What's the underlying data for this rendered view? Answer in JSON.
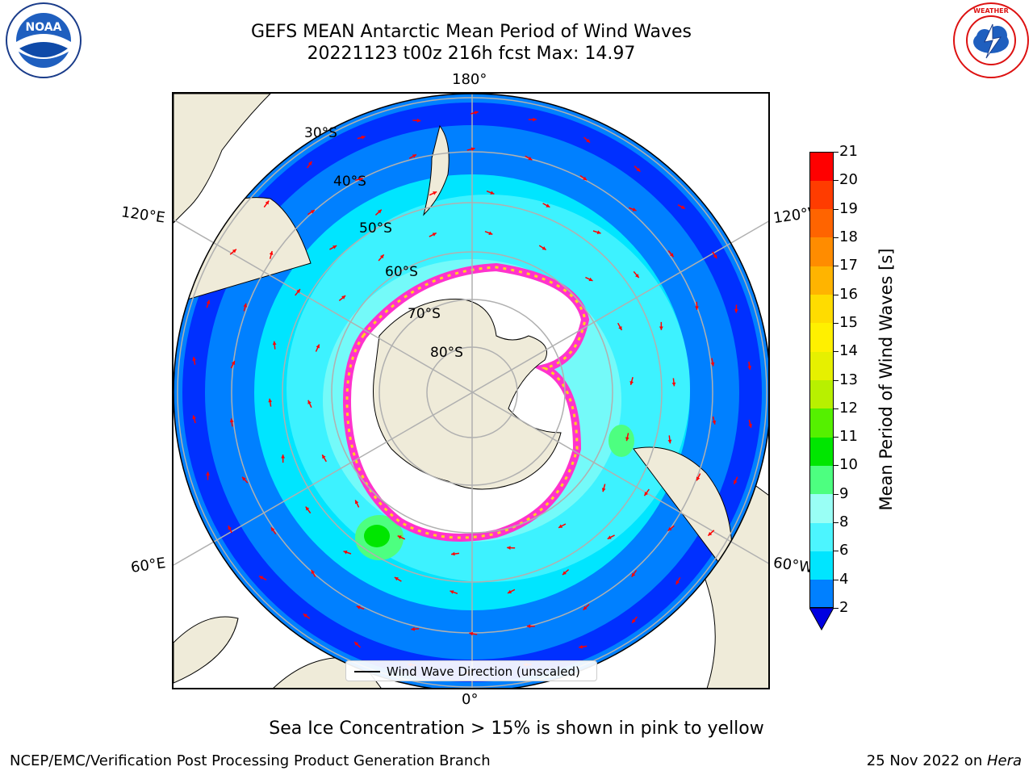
{
  "title": {
    "line1": "GEFS MEAN Antarctic Mean Period of Wind Waves",
    "line2": "20221123 t00z 216h fcst   Max: 14.97"
  },
  "logos": {
    "left": "NOAA",
    "right": "NATIONAL WEATHER SERVICE"
  },
  "map": {
    "projection": "south-polar-stereographic",
    "longitude_labels": {
      "top": "180°",
      "bottom": "0°",
      "upper_left": "120°E",
      "lower_left": "60°E",
      "upper_right": "120°W",
      "lower_right": "60°W"
    },
    "latitude_labels": [
      "30°S",
      "40°S",
      "50°S",
      "60°S",
      "70°S",
      "80°S"
    ],
    "land_color": "#efebd9",
    "ice_colors": [
      "#ff33cc",
      "#ffb4ff",
      "#ffd21e",
      "#ffffff"
    ],
    "legend": "Wind Wave Direction (unscaled)",
    "arrow_color": "#ff0000"
  },
  "colorbar": {
    "label": "Mean Period of Wind Waves [s]",
    "ticks": [
      "2",
      "4",
      "6",
      "8",
      "9",
      "10",
      "11",
      "12",
      "13",
      "14",
      "15",
      "16",
      "17",
      "18",
      "19",
      "20",
      "21"
    ],
    "colors": [
      "#0030ff",
      "#0080ff",
      "#00e5ff",
      "#4cf5ff",
      "#99fff5",
      "#4dff80",
      "#00e600",
      "#55f000",
      "#b8f000",
      "#e6f000",
      "#fff000",
      "#ffdc00",
      "#ffb400",
      "#ff8c00",
      "#ff6400",
      "#ff3c00",
      "#ff0000"
    ],
    "under_color": "#0000e0"
  },
  "caption": "Sea Ice Concentration > 15% is shown in pink to yellow",
  "footer": {
    "left": "NCEP/EMC/Verification Post Processing Product Generation Branch",
    "right_prefix": "25 Nov 2022 on ",
    "right_machine": "Hera"
  }
}
